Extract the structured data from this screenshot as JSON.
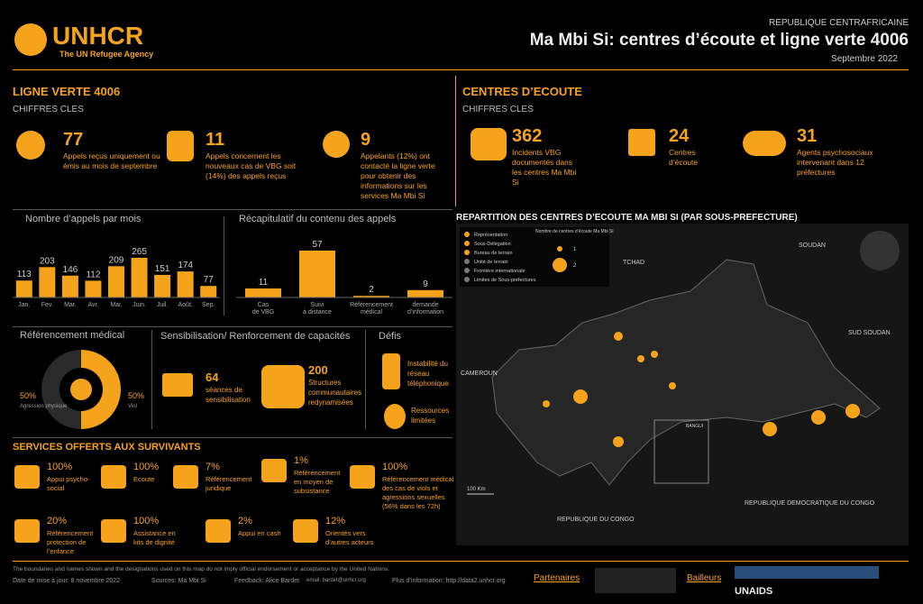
{
  "header": {
    "org": "UNHCR",
    "tagline": "The UN Refugee Agency",
    "country": "REPUBLIQUE CENTRAFRICAINE",
    "title": "Ma Mbi Si: centres d’écoute et ligne verte 4006",
    "date": "Septembre 2022"
  },
  "ligne_verte": {
    "heading": "LIGNE VERTE 4006",
    "subheading": "CHIFFRES CLES",
    "figures": [
      {
        "value": 77,
        "text": "Appels reçus uniquement ou émis au mois de septembre"
      },
      {
        "value": 11,
        "text": "Appels concernent les nouveaux cas de VBG soit (14%) des appels reçus"
      },
      {
        "value": 9,
        "text": "Appelants (12%) ont contacté la ligne verte pour obtenir des informations sur les services Ma Mbi Si"
      }
    ]
  },
  "centres": {
    "heading": "CENTRES D’ECOUTE",
    "subheading": "CHIFFRES CLES",
    "figures": [
      {
        "value": 362,
        "text": "Incidents VBG documentés dans les centres Ma Mbi Si"
      },
      {
        "value": 24,
        "text": "Centres d’écoute"
      },
      {
        "value": 31,
        "text": "Agents psychosociaux intervenant dans 12 préfectures"
      }
    ]
  },
  "calls_chart": {
    "type": "bar",
    "title": "Nombre d’appels par mois",
    "categories": [
      "Jan.",
      "Fev.",
      "Mar.",
      "Avr.",
      "Mai.",
      "Juin.",
      "Juil.",
      "Août.",
      "Sep."
    ],
    "values": [
      113,
      203,
      146,
      112,
      209,
      265,
      151,
      174,
      77
    ],
    "color": "#f5a31a"
  },
  "content_chart": {
    "type": "bar",
    "title": "Récapitulatif du contenu des appels",
    "categories": [
      "Cas de VBG",
      "Suivi à distance",
      "Référencement médical",
      "demande d’information"
    ],
    "values": [
      11,
      57,
      2,
      9
    ],
    "color": "#f5a31a"
  },
  "referral": {
    "type": "pie",
    "title": "Référencement médical",
    "categories": [
      "Agression physique",
      "Viol"
    ],
    "values": [
      50,
      50
    ],
    "value_labels": [
      "50%",
      "50%"
    ],
    "colors": [
      "#2a2a2a",
      "#f5a31a"
    ]
  },
  "sensibilisation": {
    "title": "Sensibilisation/ Renforcement de capacités",
    "items": [
      {
        "value": 64,
        "text": "séances de sensibilisation"
      },
      {
        "value": 200,
        "text": "Structures communautaires redynamisées"
      }
    ]
  },
  "defis": {
    "title": "Défis",
    "items": [
      "Instabilité du réseau téléphonique",
      "Ressources limitées"
    ]
  },
  "services": {
    "heading": "SERVICES OFFERTS AUX SURVIVANTS",
    "items": [
      {
        "value": "100%",
        "text": "Appui psycho-social"
      },
      {
        "value": "100%",
        "text": "Ecoute"
      },
      {
        "value": "7%",
        "text": "Référencement juridique"
      },
      {
        "value": "1%",
        "text": "Référencement en moyen de subsistance"
      },
      {
        "value": "100%",
        "text": "Référencement médical des cas de viols et agressions sexuelles (56% dans les 72h)"
      },
      {
        "value": "20%",
        "text": "Référencement protection de l’enfance"
      },
      {
        "value": "100%",
        "text": "Assistance en kits de dignité"
      },
      {
        "value": "2%",
        "text": "Appui en cash"
      },
      {
        "value": "12%",
        "text": "Orientés vers d’autres acteurs"
      }
    ]
  },
  "map": {
    "title": "REPARTITION DES CENTRES D’ECOUTE MA MBI SI (PAR SOUS-PREFECTURE)",
    "legend": [
      "Représentation",
      "Sous-Délégation",
      "Bureau de terrain",
      "Unité de terrain",
      "Frontière internationale",
      "Limites de Sous-préfectures"
    ],
    "size_legend_title": "Nombre de centres d’écoute Ma Mbi Si",
    "sizes": [
      "1",
      "2"
    ],
    "countries": [
      "TCHAD",
      "SOUDAN",
      "SUD SOUDAN",
      "CAMEROUN",
      "REPUBLIQUE DU CONGO",
      "REPUBLIQUE DEMOCRATIQUE DU CONGO"
    ],
    "scale": "100 Km",
    "inset": "BANGUI"
  },
  "footer": {
    "disclaimer": "The boundaries and names shown and the designations used on this map do not imply official endorsement or acceptance by the United Nations.",
    "update": "Date de mise à jour: 8 novembre 2022",
    "sources": "Sources: Ma Mbi Si",
    "feedback": "Feedback: Alice Bardet",
    "email": "email: bardet@unhcr.org",
    "info": "Plus d’information: http://data2.unhcr.org",
    "partners": "Partenaires",
    "donors": "Bailleurs",
    "unaids": "UNAIDS"
  }
}
